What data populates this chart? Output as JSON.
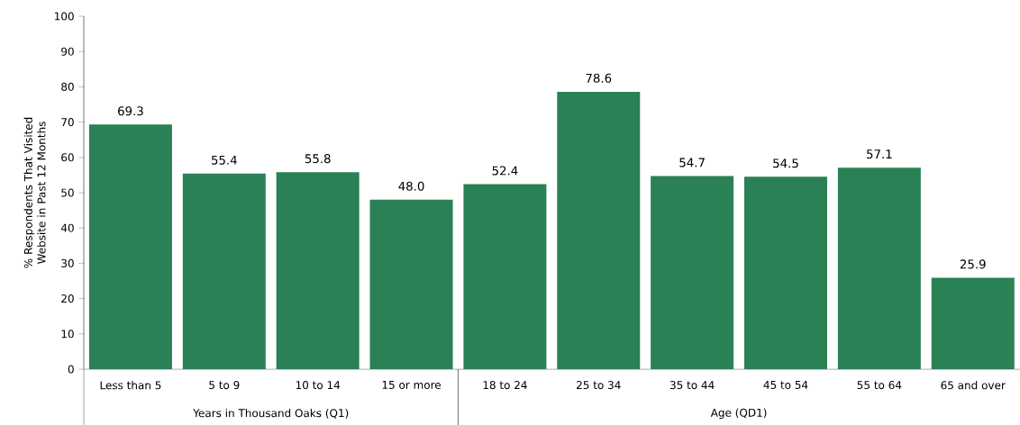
{
  "chart_data": {
    "type": "bar",
    "ylabel": "% Respondents That Visited Website in Past 12 Months",
    "categories": [
      "Less than 5",
      "5 to 9",
      "10 to 14",
      "15 or more",
      "18 to 24",
      "25 to 34",
      "35 to 44",
      "45 to 54",
      "55 to 64",
      "65 and over"
    ],
    "values": [
      69.3,
      55.4,
      55.8,
      48.0,
      52.4,
      78.6,
      54.7,
      54.5,
      57.1,
      25.9
    ],
    "value_labels": [
      "69.3",
      "55.4",
      "55.8",
      "48.0",
      "52.4",
      "78.6",
      "54.7",
      "54.5",
      "57.1",
      "25.9"
    ],
    "color": "#2a8155",
    "ylim": [
      0,
      100
    ],
    "yticks": [
      0,
      10,
      20,
      30,
      40,
      50,
      60,
      70,
      80,
      90,
      100
    ],
    "annotations": [
      "Years in Thousand Oaks (Q1)",
      "Age (QD1)"
    ],
    "grid": false
  }
}
